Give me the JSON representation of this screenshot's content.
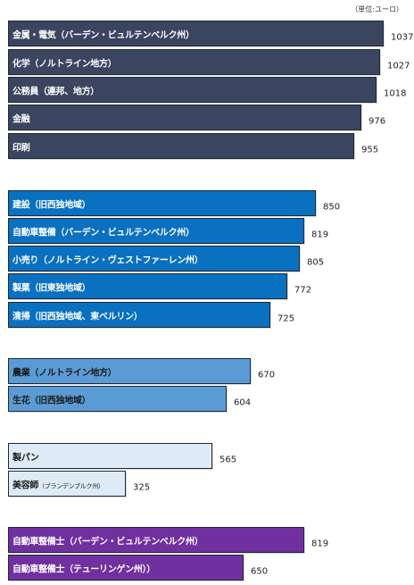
{
  "unit_note": "（単位:ユーロ）",
  "chart_data": {
    "type": "bar",
    "orientation": "horizontal",
    "xlim": [
      0,
      1037
    ],
    "categories": [
      "金属・電気（バーデン・ビュルテンベルク州）",
      "化学（ノルトライン地方）",
      "公務員（連邦、地方）",
      "金融",
      "印刷",
      "建設（旧西独地域）",
      "自動車整備（バーデン・ビュルテンベルク州）",
      "小売り（ノルトライン・ヴェストファーレン州）",
      "製菓（旧東独地域）",
      "清掃（旧西独地域、東ベルリン）",
      "農業（ノルトライン地方）",
      "生花（旧西独地域）",
      "製パン",
      "美容師（ブランデンブルク州）",
      "自動車整備士（バーデン・ビュルテンベルク州）",
      "自動車整備士（テューリンゲン州））"
    ],
    "values": [
      1037,
      1027,
      1018,
      976,
      955,
      850,
      819,
      805,
      772,
      725,
      670,
      604,
      565,
      325,
      819,
      650
    ],
    "groups": [
      {
        "color": "#3b4560",
        "text_color": "#ffffff",
        "items": [
          0,
          1,
          2,
          3,
          4
        ]
      },
      {
        "color": "#0a70c0",
        "text_color": "#ffffff",
        "items": [
          5,
          6,
          7,
          8,
          9
        ]
      },
      {
        "color": "#5b9bd5",
        "text_color": "#1a1a1a",
        "items": [
          10,
          11
        ]
      },
      {
        "color": "#deebf7",
        "text_color": "#1a1a1a",
        "items": [
          12,
          13
        ]
      },
      {
        "color": "#7030a0",
        "text_color": "#ffffff",
        "items": [
          14,
          15
        ]
      }
    ]
  }
}
